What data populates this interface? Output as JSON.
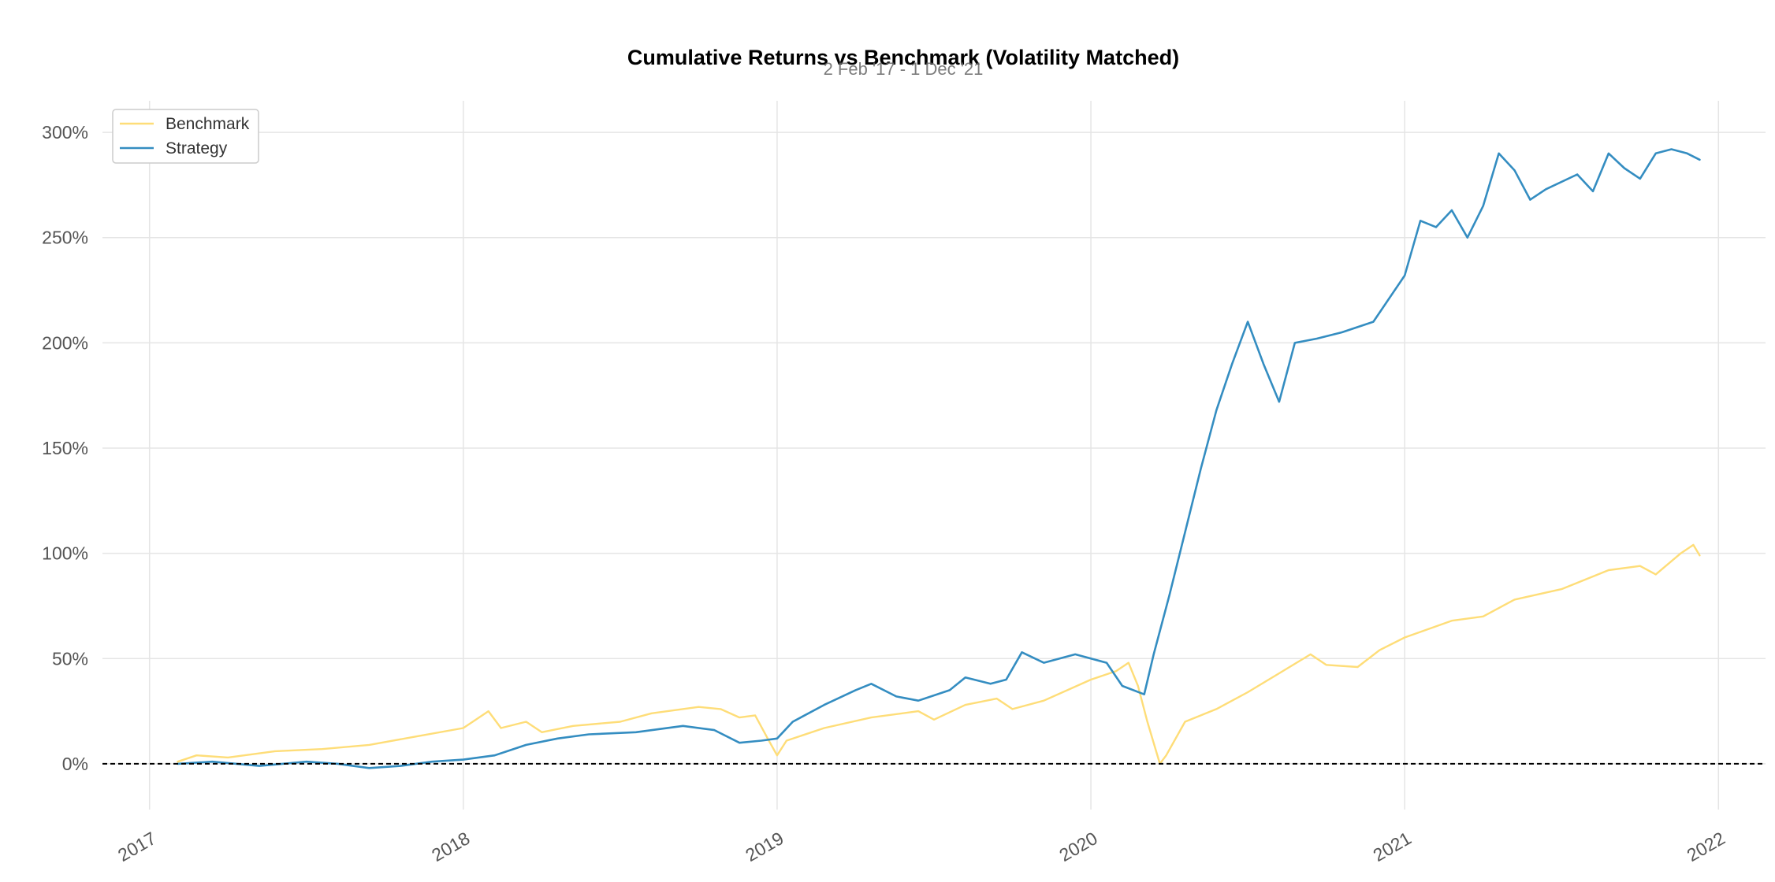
{
  "chart_data": {
    "type": "line",
    "title": "Cumulative Returns vs Benchmark (Volatility Matched)",
    "subtitle": "2 Feb '17 - 1 Dec '21",
    "xlabel": "",
    "ylabel": "",
    "x_tick_labels": [
      "2017",
      "2018",
      "2019",
      "2020",
      "2021",
      "2022"
    ],
    "x_tick_values": [
      2017.0,
      2018.0,
      2019.0,
      2020.0,
      2021.0,
      2022.0
    ],
    "y_tick_labels": [
      "0%",
      "50%",
      "100%",
      "150%",
      "200%",
      "250%",
      "300%"
    ],
    "y_tick_values": [
      0,
      50,
      100,
      150,
      200,
      250,
      300
    ],
    "xlim": [
      2016.85,
      2022.15
    ],
    "ylim": [
      -15,
      315
    ],
    "grid": true,
    "legend_position": "top-left",
    "baseline": 0,
    "colors": {
      "benchmark": "#fedd78",
      "strategy": "#348dc1",
      "baseline": "#000000",
      "grid": "#e5e5e5"
    },
    "series": [
      {
        "name": "Benchmark",
        "color": "#fedd78",
        "points": [
          [
            2017.09,
            1
          ],
          [
            2017.15,
            4
          ],
          [
            2017.25,
            3
          ],
          [
            2017.4,
            6
          ],
          [
            2017.55,
            7
          ],
          [
            2017.7,
            9
          ],
          [
            2017.85,
            13
          ],
          [
            2018.0,
            17
          ],
          [
            2018.08,
            25
          ],
          [
            2018.12,
            17
          ],
          [
            2018.2,
            20
          ],
          [
            2018.25,
            15
          ],
          [
            2018.35,
            18
          ],
          [
            2018.5,
            20
          ],
          [
            2018.6,
            24
          ],
          [
            2018.75,
            27
          ],
          [
            2018.82,
            26
          ],
          [
            2018.88,
            22
          ],
          [
            2018.93,
            23
          ],
          [
            2018.97,
            12
          ],
          [
            2019.0,
            4
          ],
          [
            2019.03,
            11
          ],
          [
            2019.15,
            17
          ],
          [
            2019.3,
            22
          ],
          [
            2019.45,
            25
          ],
          [
            2019.5,
            21
          ],
          [
            2019.6,
            28
          ],
          [
            2019.7,
            31
          ],
          [
            2019.75,
            26
          ],
          [
            2019.85,
            30
          ],
          [
            2020.0,
            40
          ],
          [
            2020.08,
            44
          ],
          [
            2020.12,
            48
          ],
          [
            2020.15,
            37
          ],
          [
            2020.18,
            20
          ],
          [
            2020.22,
            0
          ],
          [
            2020.24,
            4
          ],
          [
            2020.3,
            20
          ],
          [
            2020.4,
            26
          ],
          [
            2020.5,
            34
          ],
          [
            2020.6,
            43
          ],
          [
            2020.7,
            52
          ],
          [
            2020.75,
            47
          ],
          [
            2020.85,
            46
          ],
          [
            2020.92,
            54
          ],
          [
            2021.0,
            60
          ],
          [
            2021.15,
            68
          ],
          [
            2021.25,
            70
          ],
          [
            2021.35,
            78
          ],
          [
            2021.5,
            83
          ],
          [
            2021.65,
            92
          ],
          [
            2021.75,
            94
          ],
          [
            2021.8,
            90
          ],
          [
            2021.88,
            100
          ],
          [
            2021.92,
            104
          ],
          [
            2021.94,
            99
          ]
        ]
      },
      {
        "name": "Strategy",
        "color": "#348dc1",
        "points": [
          [
            2017.09,
            0
          ],
          [
            2017.2,
            1
          ],
          [
            2017.35,
            -1
          ],
          [
            2017.5,
            1
          ],
          [
            2017.6,
            0
          ],
          [
            2017.7,
            -2
          ],
          [
            2017.8,
            -1
          ],
          [
            2017.9,
            1
          ],
          [
            2018.0,
            2
          ],
          [
            2018.1,
            4
          ],
          [
            2018.2,
            9
          ],
          [
            2018.3,
            12
          ],
          [
            2018.4,
            14
          ],
          [
            2018.55,
            15
          ],
          [
            2018.7,
            18
          ],
          [
            2018.8,
            16
          ],
          [
            2018.88,
            10
          ],
          [
            2018.95,
            11
          ],
          [
            2019.0,
            12
          ],
          [
            2019.05,
            20
          ],
          [
            2019.15,
            28
          ],
          [
            2019.25,
            35
          ],
          [
            2019.3,
            38
          ],
          [
            2019.38,
            32
          ],
          [
            2019.45,
            30
          ],
          [
            2019.55,
            35
          ],
          [
            2019.6,
            41
          ],
          [
            2019.68,
            38
          ],
          [
            2019.73,
            40
          ],
          [
            2019.78,
            53
          ],
          [
            2019.85,
            48
          ],
          [
            2019.95,
            52
          ],
          [
            2020.05,
            48
          ],
          [
            2020.1,
            37
          ],
          [
            2020.17,
            33
          ],
          [
            2020.2,
            52
          ],
          [
            2020.25,
            80
          ],
          [
            2020.3,
            110
          ],
          [
            2020.35,
            140
          ],
          [
            2020.4,
            168
          ],
          [
            2020.45,
            190
          ],
          [
            2020.5,
            210
          ],
          [
            2020.55,
            190
          ],
          [
            2020.6,
            172
          ],
          [
            2020.65,
            200
          ],
          [
            2020.72,
            202
          ],
          [
            2020.8,
            205
          ],
          [
            2020.9,
            210
          ],
          [
            2021.0,
            232
          ],
          [
            2021.05,
            258
          ],
          [
            2021.1,
            255
          ],
          [
            2021.15,
            263
          ],
          [
            2021.2,
            250
          ],
          [
            2021.25,
            265
          ],
          [
            2021.3,
            290
          ],
          [
            2021.35,
            282
          ],
          [
            2021.4,
            268
          ],
          [
            2021.45,
            273
          ],
          [
            2021.55,
            280
          ],
          [
            2021.6,
            272
          ],
          [
            2021.65,
            290
          ],
          [
            2021.7,
            283
          ],
          [
            2021.75,
            278
          ],
          [
            2021.8,
            290
          ],
          [
            2021.85,
            292
          ],
          [
            2021.9,
            290
          ],
          [
            2021.94,
            287
          ]
        ]
      }
    ]
  }
}
